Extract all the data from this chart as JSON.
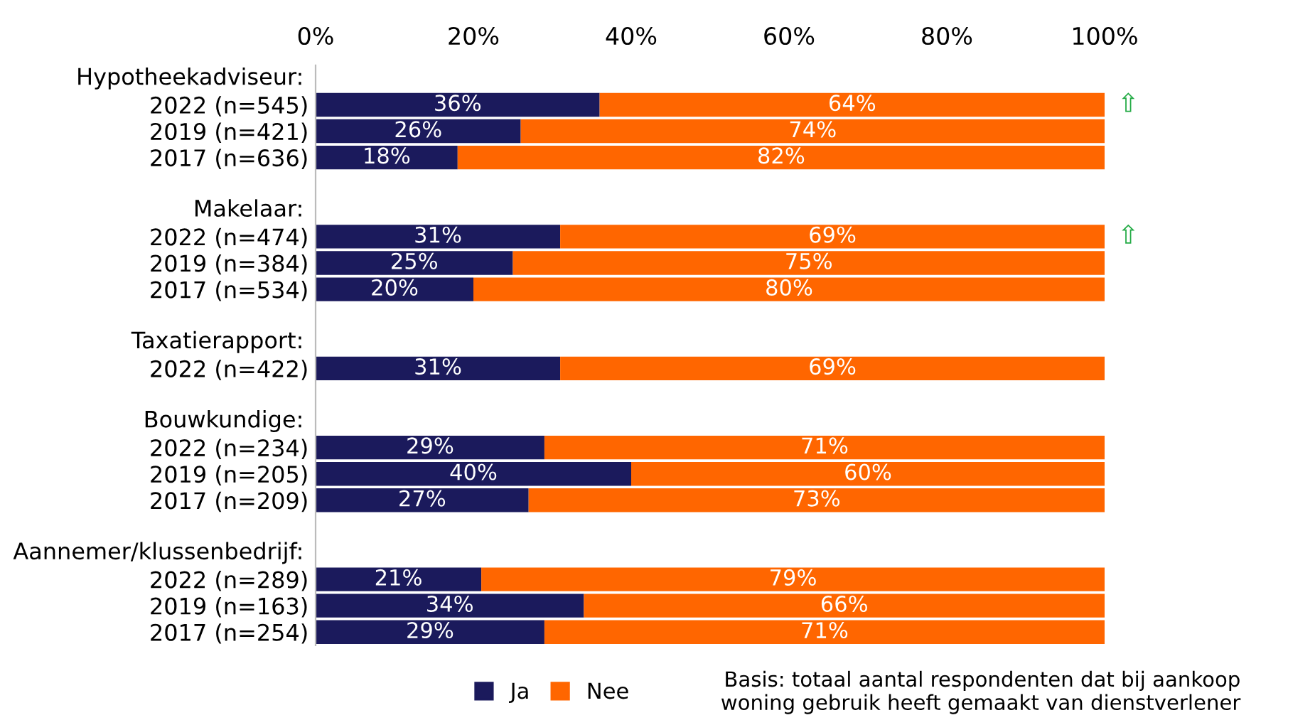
{
  "chart_data": {
    "type": "bar",
    "orientation": "horizontal",
    "stacked": true,
    "categories": [
      null,
      "2022 (n=545)",
      "2019 (n=421)",
      "2017 (n=636)",
      null,
      null,
      "2022 (n=474)",
      "2019 (n=384)",
      "2017 (n=534)",
      null,
      null,
      "2022 (n=422)",
      null,
      null,
      "2022 (n=234)",
      "2019 (n=205)",
      "2017 (n=209)",
      null,
      null,
      "2022 (n=289)",
      "2019 (n=163)",
      "2017 (n=254)"
    ],
    "series": [
      {
        "name": "Ja",
        "color": "#1b1a5c",
        "values": [
          null,
          36,
          26,
          18,
          null,
          null,
          31,
          25,
          20,
          null,
          null,
          31,
          null,
          null,
          29,
          40,
          27,
          null,
          null,
          21,
          34,
          29
        ],
        "value_labels": [
          null,
          "36%",
          "26%",
          "18%",
          null,
          null,
          "31%",
          "25%",
          "20%",
          null,
          null,
          "31%",
          null,
          null,
          "29%",
          "40%",
          "27%",
          null,
          null,
          "21%",
          "34%",
          "29%"
        ]
      },
      {
        "name": "Nee",
        "color": "#ff6600",
        "values": [
          null,
          64,
          74,
          82,
          null,
          null,
          69,
          75,
          80,
          null,
          null,
          69,
          null,
          null,
          71,
          60,
          73,
          null,
          null,
          79,
          66,
          71
        ],
        "value_labels": [
          null,
          "64%",
          "74%",
          "82%",
          null,
          null,
          "69%",
          "75%",
          "80%",
          null,
          null,
          "69%",
          null,
          null,
          "71%",
          "60%",
          "73%",
          null,
          null,
          "79%",
          "66%",
          "71%"
        ]
      }
    ],
    "xlim": [
      0,
      100
    ],
    "xticks": [
      {
        "value": 0,
        "label": "0%"
      },
      {
        "value": 20,
        "label": "20%"
      },
      {
        "value": 40,
        "label": "40%"
      },
      {
        "value": 60,
        "label": "60%"
      },
      {
        "value": 80,
        "label": "80%"
      },
      {
        "value": 100,
        "label": "100%"
      }
    ],
    "grid": false,
    "legend": "bottom",
    "annotations": [
      "Hypotheekadviseur:",
      "Makelaar:",
      "Taxatierapport:",
      "Bouwkundige:",
      "Aannemer/klussenbedrijf:",
      "⇧",
      "⇧",
      "Basis: totaal aantal respondenten dat bij aankoop woning gebruik heeft gemaakt van dienstverlener"
    ]
  }
}
